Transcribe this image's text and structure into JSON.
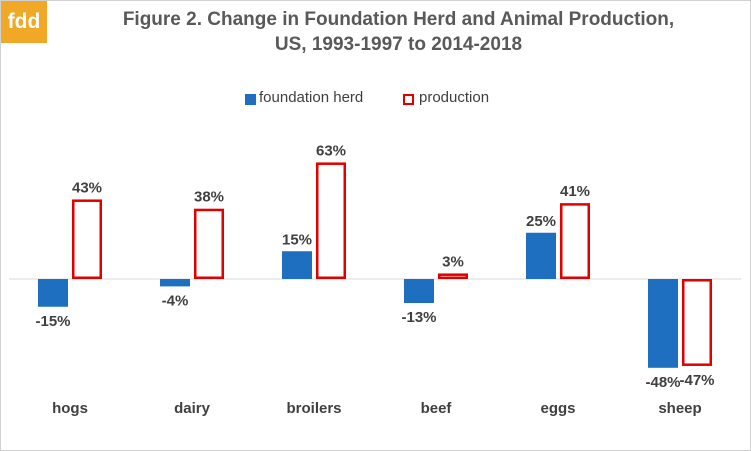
{
  "logo": {
    "text": "fdd",
    "color": "#f0a826"
  },
  "chart_data": {
    "type": "bar",
    "title": "Figure 2.  Change in Foundation Herd and Animal Production,",
    "subtitle": "US, 1993-1997 to 2014-2018",
    "xlabel": "",
    "ylabel": "",
    "categories": [
      "hogs",
      "dairy",
      "broilers",
      "beef",
      "eggs",
      "sheep"
    ],
    "series": [
      {
        "name": "foundation herd",
        "style": "filled",
        "color": "#1f6fc0",
        "values": [
          -15,
          -4,
          15,
          -13,
          25,
          -48
        ],
        "labels": [
          "-15%",
          "-4%",
          "15%",
          "-13%",
          "25%",
          "-48%"
        ]
      },
      {
        "name": "production",
        "style": "outline",
        "color": "#e00000",
        "values": [
          43,
          38,
          63,
          3,
          41,
          -47
        ],
        "labels": [
          "43%",
          "38%",
          "63%",
          "3%",
          "41%",
          "-47%"
        ]
      }
    ],
    "ylim": [
      -50,
      65
    ],
    "grid": false,
    "legend": "top-center",
    "baseline": true
  }
}
